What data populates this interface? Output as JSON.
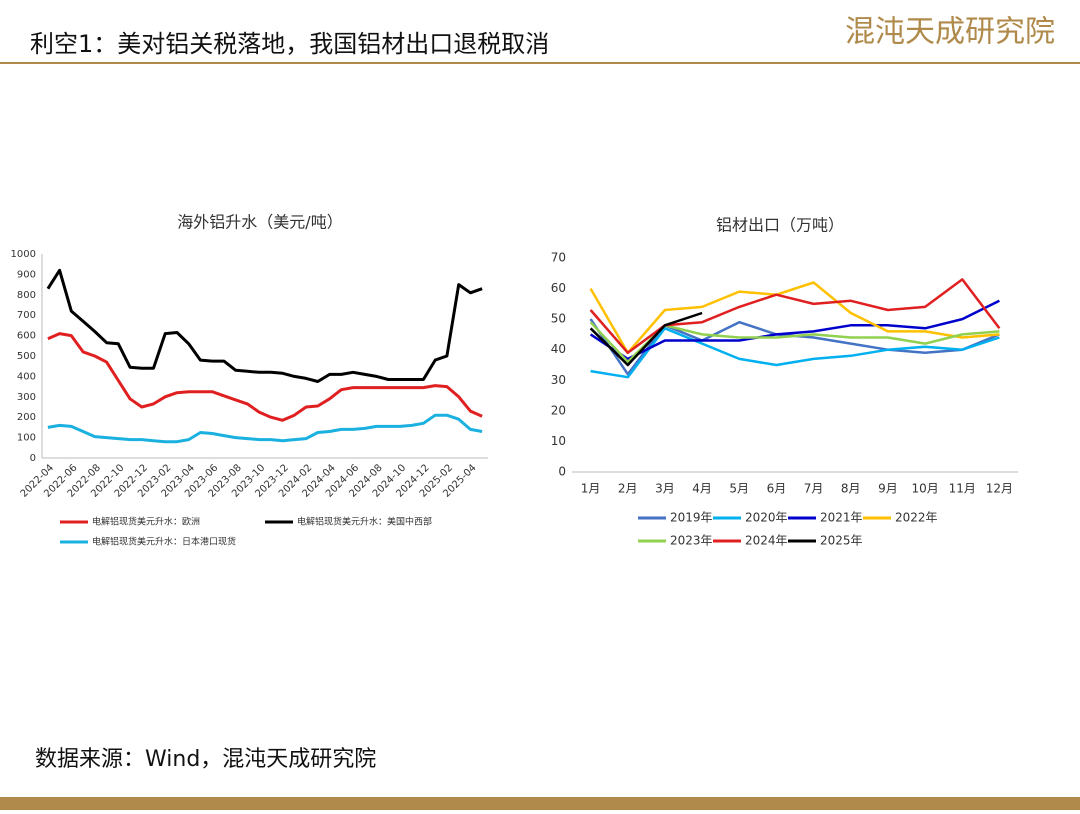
{
  "header": {
    "title": "利空1：美对铝关税落地，我国铝材出口退税取消",
    "logo": "混沌天成研究院"
  },
  "footer": {
    "source": "数据来源：Wind，混沌天成研究院"
  },
  "chart_data": [
    {
      "type": "line",
      "title": "海外铝升水（美元/吨）",
      "categories": [
        "2022-04",
        null,
        "2022-06",
        null,
        "2022-08",
        null,
        "2022-10",
        null,
        "2022-12",
        null,
        "2023-02",
        null,
        "2023-04",
        null,
        "2023-06",
        null,
        "2023-08",
        null,
        "2023-10",
        null,
        "2023-12",
        null,
        "2024-02",
        null,
        "2024-04",
        null,
        "2024-06",
        null,
        "2024-08",
        null,
        "2024-10",
        null,
        "2024-12",
        null,
        "2025-02",
        null,
        "2025-04",
        null
      ],
      "series": [
        {
          "name": "电解铝现货美元升水：欧洲",
          "color": "#e02020",
          "values": [
            585,
            610,
            600,
            520,
            500,
            470,
            380,
            290,
            250,
            265,
            300,
            320,
            325,
            325,
            325,
            305,
            285,
            265,
            225,
            200,
            185,
            210,
            250,
            255,
            290,
            335,
            345,
            345,
            345,
            345,
            345,
            345,
            345,
            355,
            350,
            300,
            230,
            205
          ]
        },
        {
          "name": "电解铝现货美元升水：美国中西部",
          "color": "#000000",
          "values": [
            830,
            920,
            720,
            670,
            620,
            565,
            560,
            445,
            440,
            440,
            610,
            615,
            560,
            480,
            475,
            475,
            430,
            425,
            420,
            420,
            415,
            400,
            390,
            375,
            410,
            410,
            420,
            410,
            400,
            385,
            385,
            385,
            385,
            480,
            500,
            850,
            810,
            830
          ]
        },
        {
          "name": "电解铝现货美元升水：日本港口现货",
          "color": "#1ab0e0",
          "values": [
            150,
            160,
            155,
            130,
            105,
            100,
            95,
            90,
            90,
            85,
            80,
            80,
            90,
            125,
            120,
            110,
            100,
            95,
            90,
            90,
            85,
            90,
            95,
            125,
            130,
            140,
            140,
            145,
            155,
            155,
            155,
            160,
            170,
            210,
            210,
            190,
            140,
            130
          ]
        }
      ],
      "ylim": [
        0,
        1000
      ],
      "yticks": [
        0,
        100,
        200,
        300,
        400,
        500,
        600,
        700,
        800,
        900,
        1000
      ],
      "grid": false
    },
    {
      "type": "line",
      "title": "铝材出口（万吨）",
      "categories": [
        "1月",
        "2月",
        "3月",
        "4月",
        "5月",
        "6月",
        "7月",
        "8月",
        "9月",
        "10月",
        "11月",
        "12月"
      ],
      "series": [
        {
          "name": "2019年",
          "color": "#4472c4",
          "values": [
            50,
            32,
            48,
            43,
            49,
            45,
            44,
            42,
            40,
            39,
            40,
            45
          ]
        },
        {
          "name": "2020年",
          "color": "#00b0f0",
          "values": [
            33,
            31,
            47,
            42,
            37,
            35,
            37,
            38,
            40,
            41,
            40,
            44
          ]
        },
        {
          "name": "2021年",
          "color": "#0000cc",
          "values": [
            45,
            37,
            43,
            43,
            43,
            45,
            46,
            48,
            48,
            47,
            50,
            56
          ]
        },
        {
          "name": "2022年",
          "color": "#ffc000",
          "values": [
            60,
            39,
            53,
            54,
            59,
            58,
            62,
            52,
            46,
            46,
            44,
            45
          ]
        },
        {
          "name": "2023年",
          "color": "#92d050",
          "values": [
            49,
            36,
            48,
            45,
            44,
            44,
            45,
            44,
            44,
            42,
            45,
            46
          ]
        },
        {
          "name": "2024年",
          "color": "#e02020",
          "values": [
            53,
            39,
            48,
            49,
            54,
            58,
            55,
            56,
            53,
            54,
            63,
            47
          ]
        },
        {
          "name": "2025年",
          "color": "#000000",
          "values": [
            47,
            35,
            48,
            52,
            null,
            null,
            null,
            null,
            null,
            null,
            null,
            null
          ]
        }
      ],
      "ylim": [
        0,
        70
      ],
      "yticks": [
        0,
        10,
        20,
        30,
        40,
        50,
        60,
        70
      ],
      "grid": false
    }
  ]
}
